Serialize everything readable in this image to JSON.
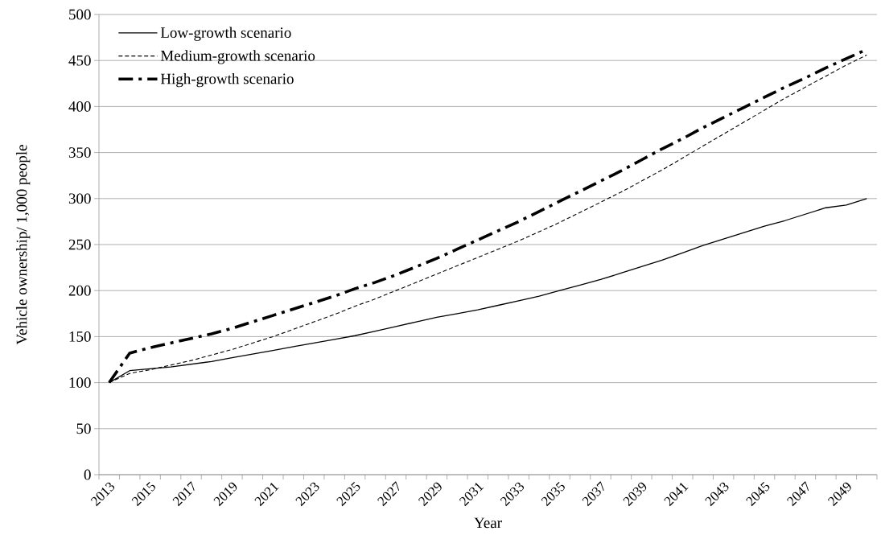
{
  "chart_data": {
    "type": "line",
    "xlabel": "Year",
    "ylabel": "Vehicle ownership/ 1,000 people",
    "categories": [
      "2013",
      null,
      "2015",
      null,
      "2017",
      null,
      "2019",
      null,
      "2021",
      null,
      "2023",
      null,
      "2025",
      null,
      "2027",
      null,
      "2029",
      null,
      "2031",
      null,
      "2033",
      null,
      "2035",
      null,
      "2037",
      null,
      "2039",
      null,
      "2041",
      null,
      "2043",
      null,
      "2045",
      null,
      "2047",
      null,
      "2049",
      null
    ],
    "series": [
      {
        "name": "Low-growth scenario",
        "color": "#000000",
        "line_style": "solid",
        "values": [
          100,
          113,
          115,
          117,
          120,
          123,
          127,
          131,
          135,
          139,
          143,
          147,
          151,
          156,
          161,
          166,
          171,
          175,
          179,
          184,
          189,
          194,
          200,
          206,
          212,
          219,
          226,
          233,
          241,
          249,
          256,
          263,
          270,
          276,
          283,
          290,
          293,
          300
        ]
      },
      {
        "name": "Medium-growth scenario",
        "color": "#000000",
        "line_style": "dashed",
        "values": [
          100,
          110,
          114,
          119,
          124,
          130,
          136,
          143,
          150,
          158,
          166,
          174,
          183,
          191,
          200,
          209,
          218,
          227,
          236,
          245,
          254,
          264,
          274,
          285,
          296,
          307,
          319,
          331,
          344,
          357,
          370,
          383,
          396,
          409,
          421,
          433,
          445,
          456
        ]
      },
      {
        "name": "High-growth scenario",
        "color": "#000000",
        "line_style": "dashdot",
        "values": [
          100,
          132,
          138,
          143,
          148,
          153,
          159,
          166,
          173,
          180,
          187,
          194,
          202,
          209,
          217,
          226,
          235,
          245,
          255,
          265,
          275,
          286,
          297,
          308,
          319,
          330,
          342,
          354,
          365,
          377,
          388,
          399,
          410,
          421,
          431,
          442,
          452,
          462
        ]
      }
    ],
    "ylim": [
      0,
      500
    ],
    "yticks": [
      0,
      50,
      100,
      150,
      200,
      250,
      300,
      350,
      400,
      450,
      500
    ],
    "grid": "y",
    "legend": "top left"
  }
}
